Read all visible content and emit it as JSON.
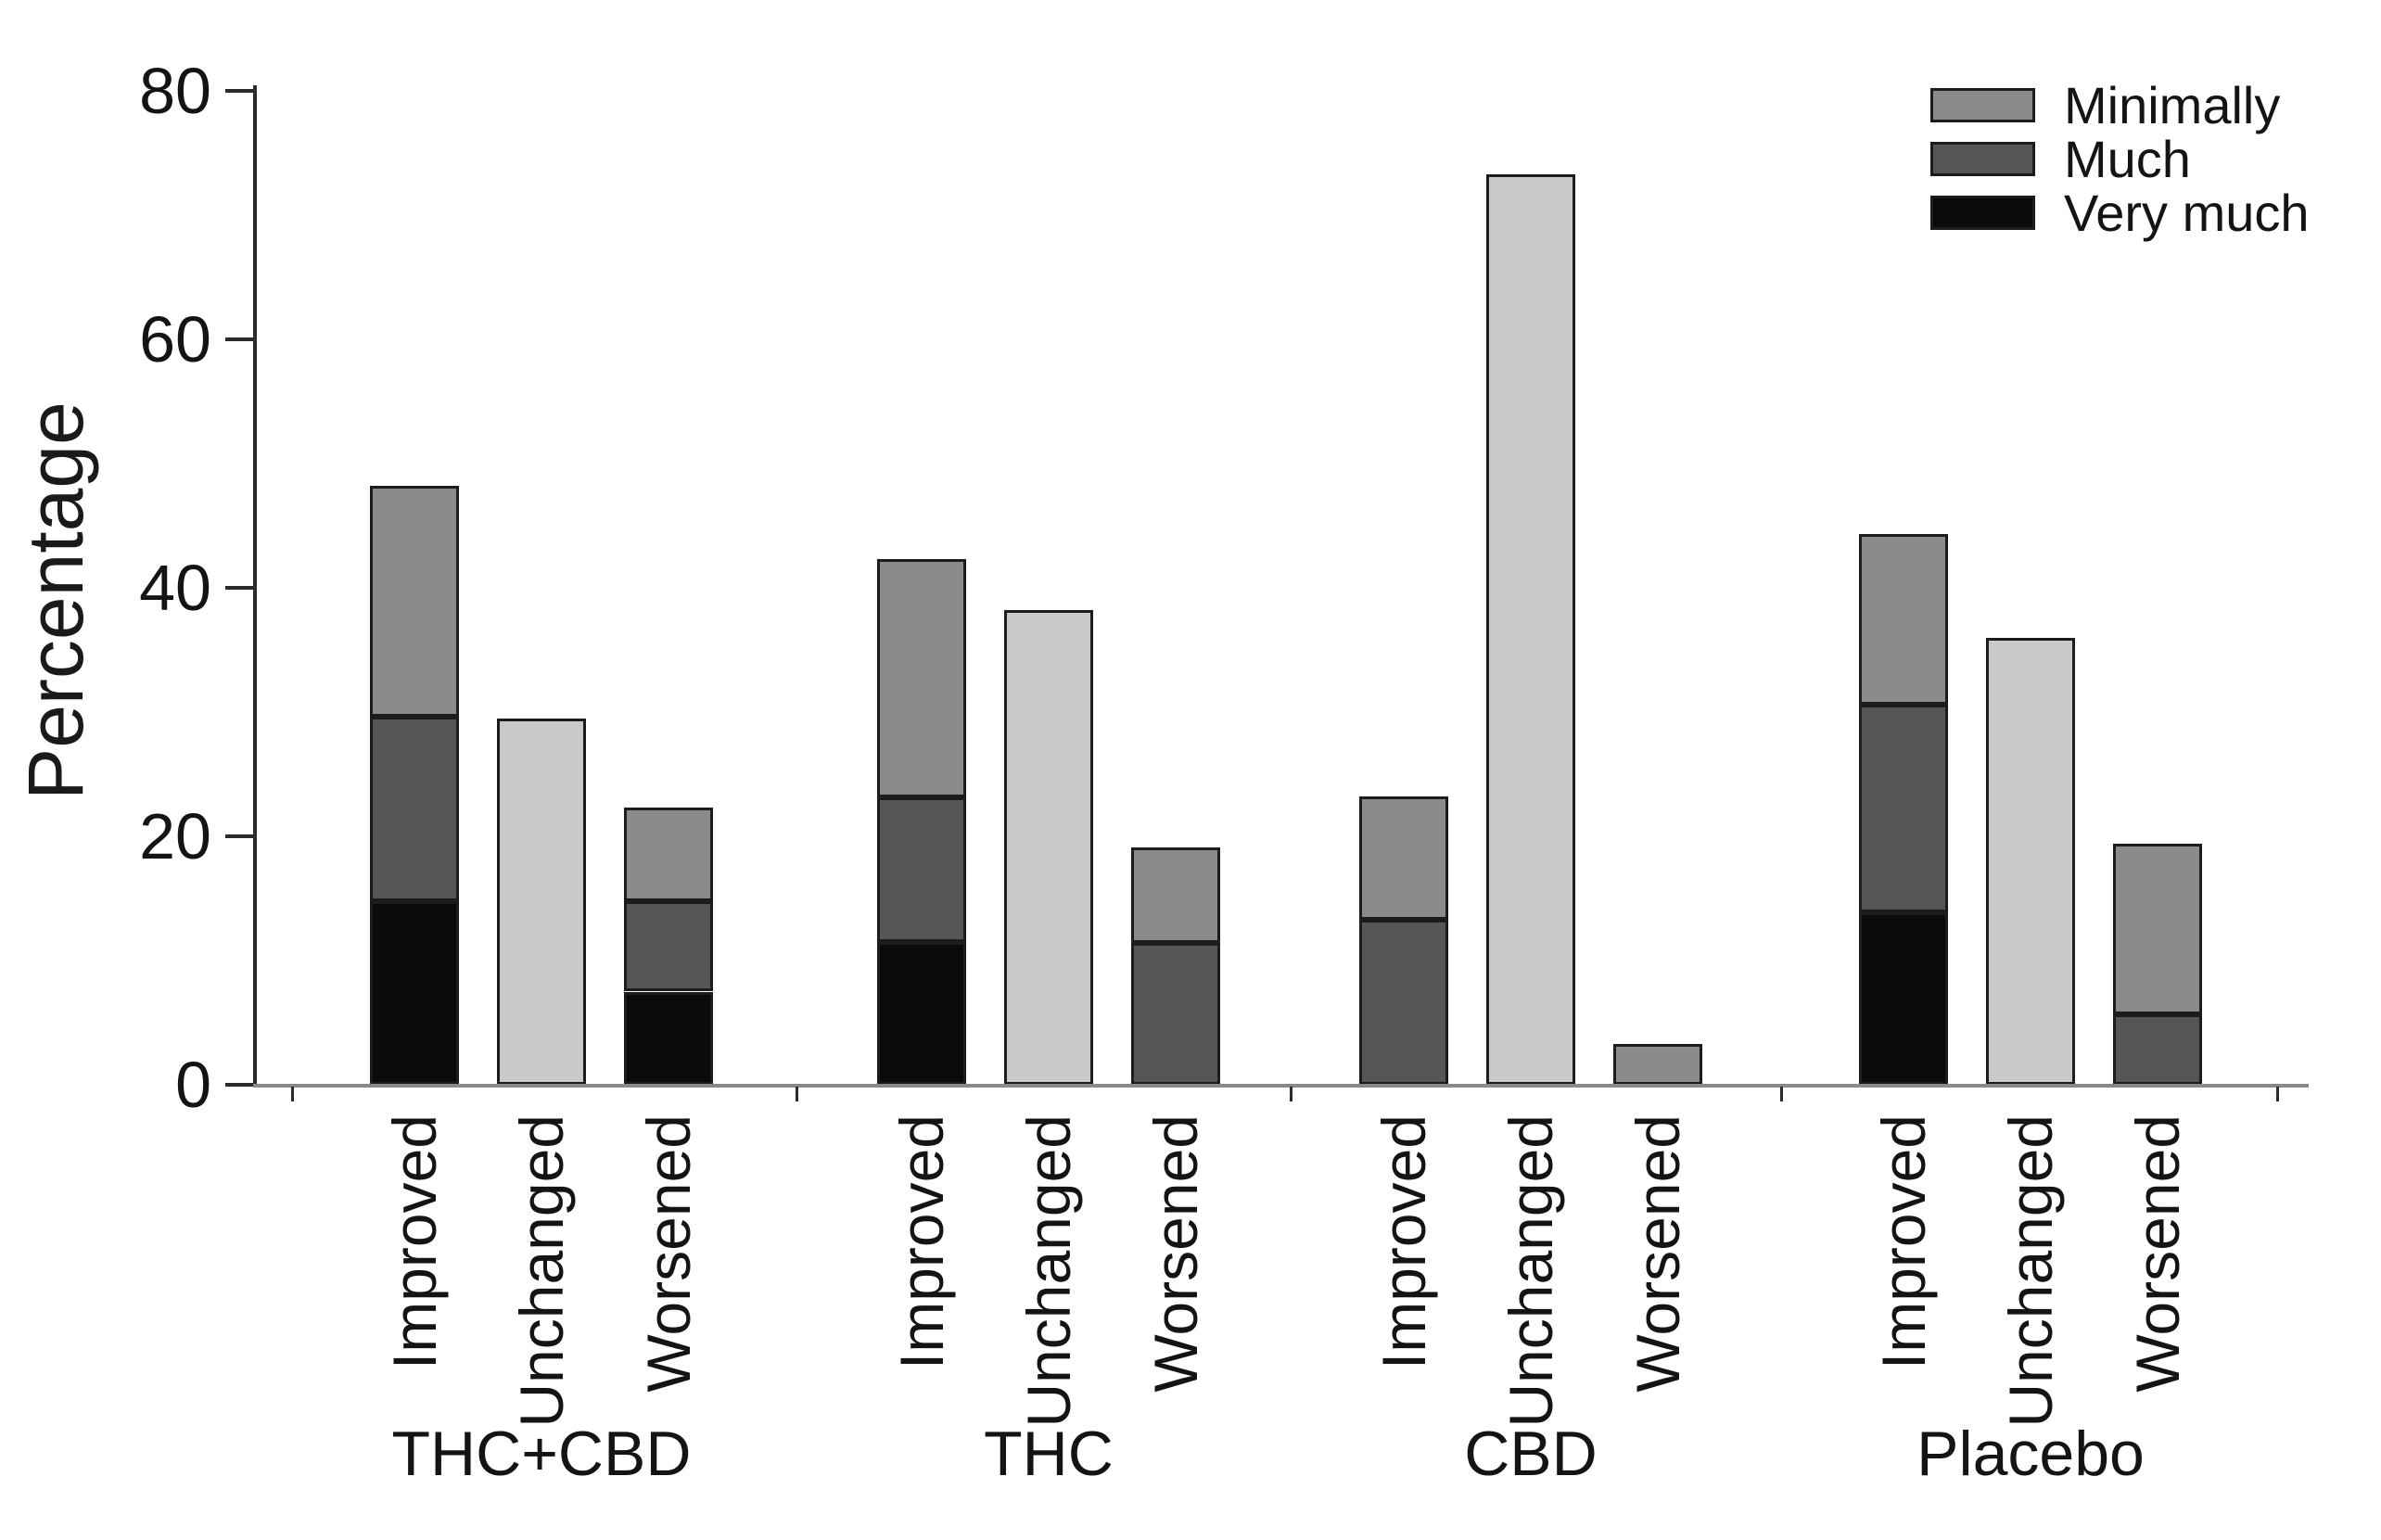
{
  "chart_data": {
    "type": "bar",
    "stacked": true,
    "orientation": "vertical",
    "title": "",
    "ylabel": "Percentage",
    "ylim": [
      0,
      80
    ],
    "yticks": [
      0,
      20,
      40,
      60,
      80
    ],
    "grid": false,
    "categories": [
      "Improved",
      "Unchanged",
      "Worsened"
    ],
    "legend": {
      "position": "top-right",
      "entries": [
        {
          "label": "Minimally",
          "key": "minimally"
        },
        {
          "label": "Much",
          "key": "much"
        },
        {
          "label": "Very much",
          "key": "very_much"
        }
      ]
    },
    "colors": {
      "minimally": "#8b8b8b",
      "much": "#565656",
      "very_much": "#0a0a0a",
      "unchanged": "#c9c9c9",
      "border": "#1c1c1c",
      "baseline": "#8a8a8a",
      "axis": "#2b2b2b"
    },
    "groups": [
      {
        "label": "THC+CBD",
        "bars": [
          {
            "category": "Improved",
            "segments": [
              {
                "key": "very_much",
                "value": 14.8
              },
              {
                "key": "much",
                "value": 14.8
              },
              {
                "key": "minimally",
                "value": 18.6
              }
            ]
          },
          {
            "category": "Unchanged",
            "segments": [
              {
                "key": "unchanged",
                "value": 29.5
              }
            ]
          },
          {
            "category": "Worsened",
            "segments": [
              {
                "key": "very_much",
                "value": 7.5
              },
              {
                "key": "much",
                "value": 7.3
              },
              {
                "key": "minimally",
                "value": 7.5
              }
            ]
          }
        ]
      },
      {
        "label": "THC",
        "bars": [
          {
            "category": "Improved",
            "segments": [
              {
                "key": "very_much",
                "value": 11.5
              },
              {
                "key": "much",
                "value": 11.6
              },
              {
                "key": "minimally",
                "value": 19.2
              }
            ]
          },
          {
            "category": "Unchanged",
            "segments": [
              {
                "key": "unchanged",
                "value": 38.2
              }
            ]
          },
          {
            "category": "Worsened",
            "segments": [
              {
                "key": "much",
                "value": 11.4
              },
              {
                "key": "minimally",
                "value": 7.7
              }
            ]
          }
        ]
      },
      {
        "label": "CBD",
        "bars": [
          {
            "category": "Improved",
            "segments": [
              {
                "key": "much",
                "value": 13.3
              },
              {
                "key": "minimally",
                "value": 9.9
              }
            ]
          },
          {
            "category": "Unchanged",
            "segments": [
              {
                "key": "unchanged",
                "value": 73.3
              }
            ]
          },
          {
            "category": "Worsened",
            "segments": [
              {
                "key": "minimally",
                "value": 3.3
              }
            ]
          }
        ]
      },
      {
        "label": "Placebo",
        "bars": [
          {
            "category": "Improved",
            "segments": [
              {
                "key": "very_much",
                "value": 13.9
              },
              {
                "key": "much",
                "value": 16.7
              },
              {
                "key": "minimally",
                "value": 13.7
              }
            ]
          },
          {
            "category": "Unchanged",
            "segments": [
              {
                "key": "unchanged",
                "value": 36.0
              }
            ]
          },
          {
            "category": "Worsened",
            "segments": [
              {
                "key": "much",
                "value": 5.7
              },
              {
                "key": "minimally",
                "value": 13.7
              }
            ]
          }
        ]
      }
    ]
  }
}
